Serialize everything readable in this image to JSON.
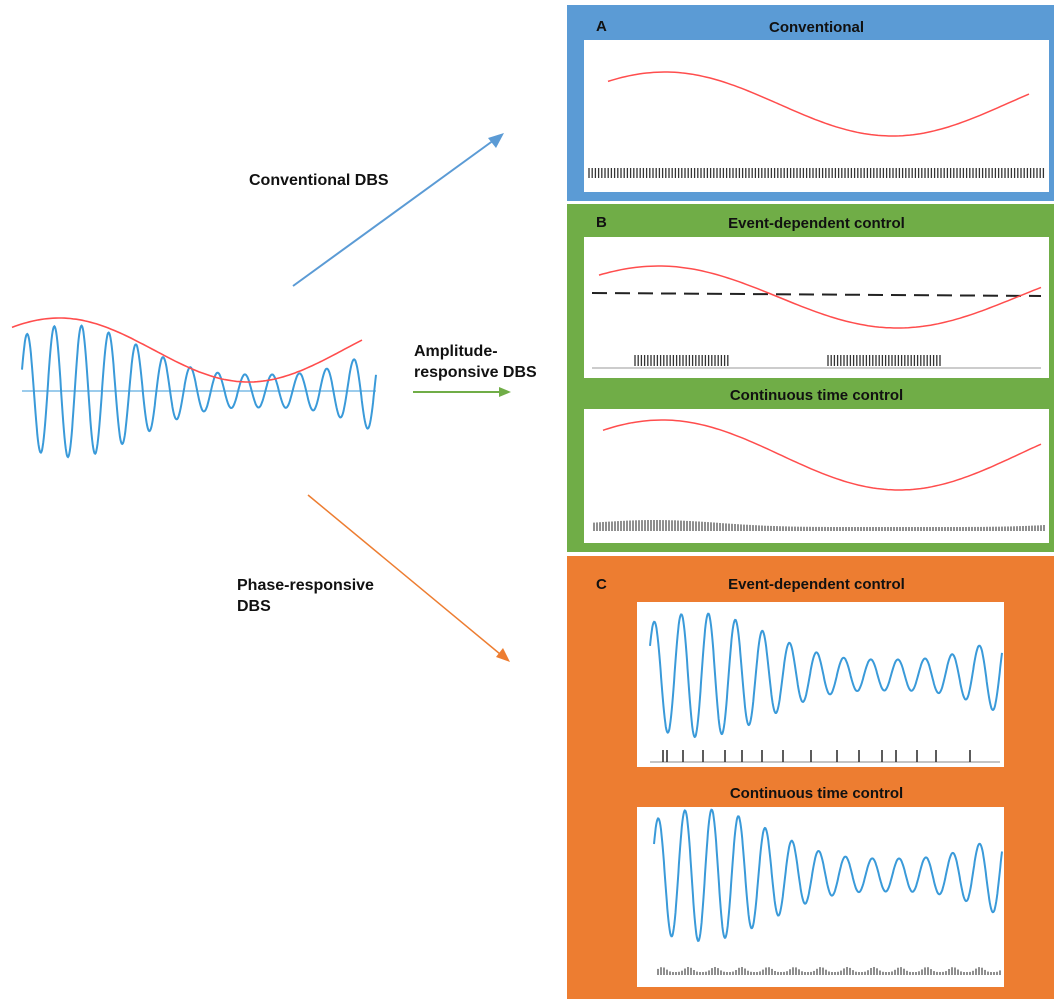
{
  "labels": {
    "conventional_dbs": "Conventional DBS",
    "amplitude_dbs": "Amplitude-\nresponsive DBS",
    "phase_dbs": "Phase-responsive\nDBS"
  },
  "panels": {
    "a": {
      "letter": "A",
      "title": "Conventional"
    },
    "b": {
      "letter": "B",
      "title_top": "Event-dependent control",
      "title_bottom": "Continuous time control"
    },
    "c": {
      "letter": "C",
      "title_top": "Event-dependent control",
      "title_bottom": "Continuous time control"
    }
  },
  "colors": {
    "panel_a": "#5b9bd5",
    "panel_b": "#70ad47",
    "panel_c": "#ed7d31",
    "envelope": "#ff4d4d",
    "oscillation": "#3a9ad9",
    "arrow_conventional": "#5b9bd5",
    "arrow_amplitude": "#70ad47",
    "arrow_phase": "#ed7d31",
    "pulses": "#333333"
  }
}
